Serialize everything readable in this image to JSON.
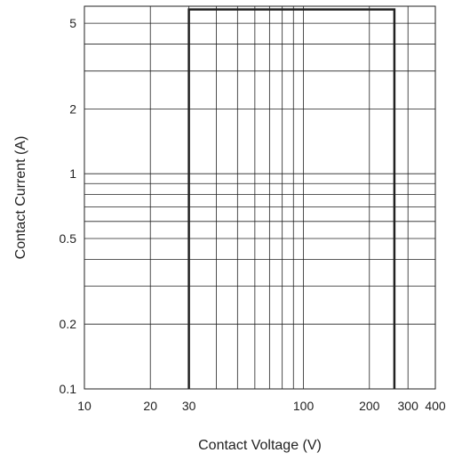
{
  "chart_data": {
    "type": "line",
    "xlabel": "Contact Voltage (V)",
    "ylabel": "Contact Current (A)",
    "xscale": "log",
    "yscale": "log",
    "xlim": [
      10,
      400
    ],
    "ylim": [
      0.1,
      6
    ],
    "x_ticks": [
      {
        "value": 10,
        "label": "10"
      },
      {
        "value": 20,
        "label": "20"
      },
      {
        "value": 30,
        "label": "30"
      },
      {
        "value": 100,
        "label": "100"
      },
      {
        "value": 200,
        "label": "200"
      },
      {
        "value": 300,
        "label": "300"
      },
      {
        "value": 400,
        "label": "400"
      }
    ],
    "y_ticks": [
      {
        "value": 0.1,
        "label": "0.1"
      },
      {
        "value": 0.2,
        "label": "0.2"
      },
      {
        "value": 0.5,
        "label": "0.5"
      },
      {
        "value": 1,
        "label": "1"
      },
      {
        "value": 2,
        "label": "2"
      },
      {
        "value": 5,
        "label": "5"
      }
    ],
    "x_grid": [
      10,
      20,
      30,
      40,
      50,
      60,
      70,
      80,
      90,
      100,
      200,
      300,
      400
    ],
    "y_grid": [
      0.1,
      0.2,
      0.3,
      0.4,
      0.5,
      0.6,
      0.7,
      0.8,
      0.9,
      1,
      2,
      3,
      4,
      5,
      6
    ],
    "grid": true,
    "series": [
      {
        "x": [
          30,
          30,
          260,
          260
        ],
        "y": [
          0.1,
          5.8,
          5.8,
          0.1
        ],
        "color": "#222222"
      }
    ]
  }
}
